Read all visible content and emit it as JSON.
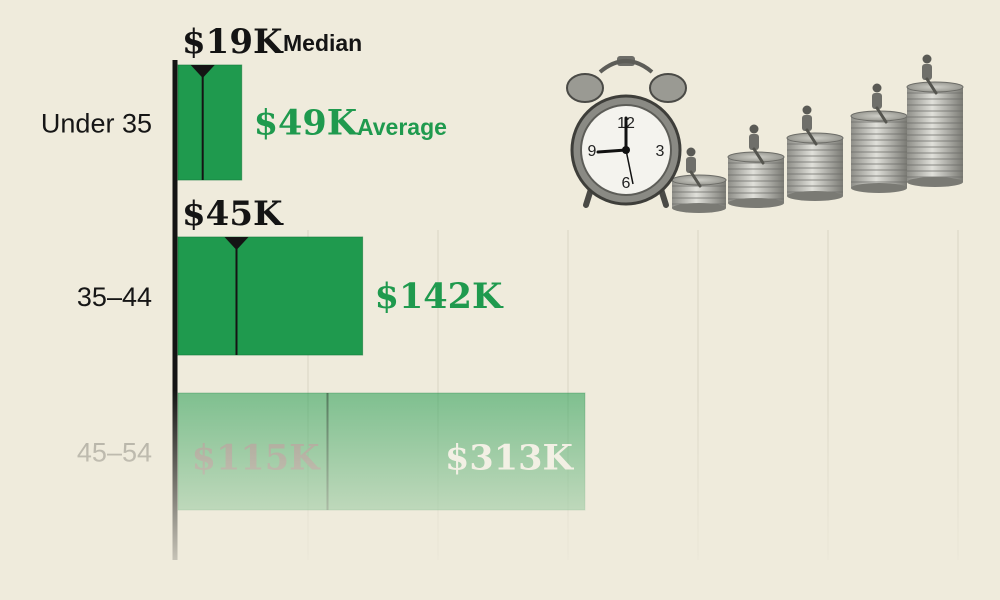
{
  "chart_data": {
    "type": "bar",
    "categories": [
      "Under 35",
      "35–44",
      "45–54"
    ],
    "series": [
      {
        "name": "Average",
        "values": [
          49,
          142,
          313
        ]
      },
      {
        "name": "Median",
        "values": [
          19,
          45,
          115
        ]
      }
    ],
    "value_labels": {
      "average": [
        "$49K",
        "$142K",
        "$313K"
      ],
      "median": [
        "$19K",
        "$45K",
        "$115K"
      ]
    },
    "legend_words": {
      "median": "Median",
      "average": "Average"
    },
    "xlim": [
      0,
      450
    ],
    "grid": true,
    "faded_categories": [
      2
    ]
  },
  "colors": {
    "bar": "#1f9a4e",
    "bar_dark": "#137a3a",
    "accent_text": "#1f9a4e",
    "median_marker": "#141414",
    "background": "#efebdc",
    "faded_text": "#a8a59a"
  },
  "illustration": {
    "name": "alarm-clock-and-coin-stacks",
    "clock_numbers": [
      "12",
      "3",
      "6",
      "9"
    ]
  }
}
